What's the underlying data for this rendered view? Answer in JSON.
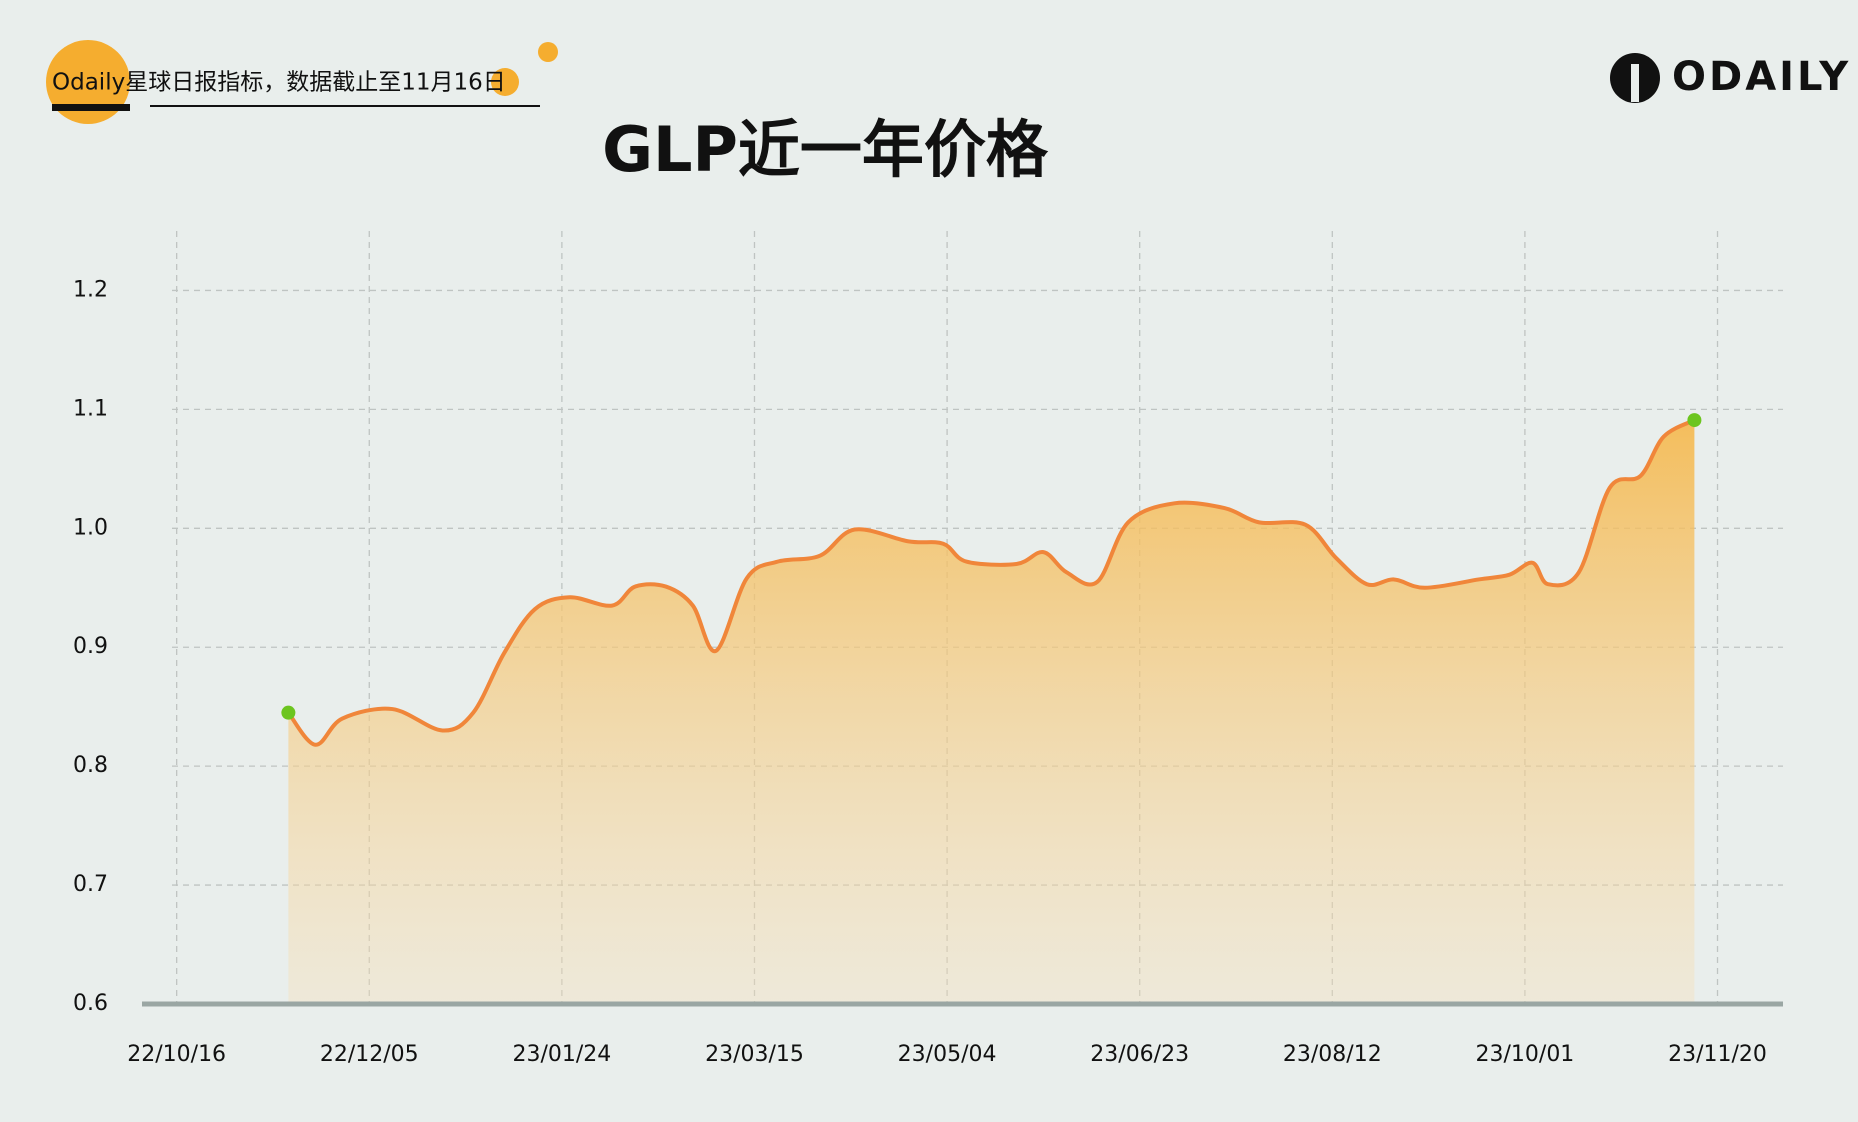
{
  "header": {
    "source": "Odaily星球日报指标，数据截止至11月16日",
    "logo": "ODAILY"
  },
  "chart_data": {
    "type": "line",
    "title": "GLP近一年价格",
    "x": [
      "22/11/14",
      "22/11/21",
      "22/11/28",
      "22/12/11",
      "22/12/24",
      "23/01/01",
      "23/01/09",
      "23/01/17",
      "23/01/26",
      "23/02/06",
      "23/02/12",
      "23/02/20",
      "23/02/27",
      "23/03/05",
      "23/03/13",
      "23/03/21",
      "23/04/01",
      "23/04/10",
      "23/04/24",
      "23/05/03",
      "23/05/09",
      "23/05/22",
      "23/05/29",
      "23/06/04",
      "23/06/12",
      "23/06/20",
      "23/07/02",
      "23/07/15",
      "23/07/24",
      "23/08/05",
      "23/08/13",
      "23/08/21",
      "23/08/28",
      "23/09/05",
      "23/09/19",
      "23/09/27",
      "23/10/03",
      "23/10/07",
      "23/10/15",
      "23/10/23",
      "23/10/31",
      "23/11/06",
      "23/11/14"
    ],
    "series": [
      {
        "color": "#f0863a",
        "values": [
          0.845,
          0.818,
          0.84,
          0.848,
          0.83,
          0.845,
          0.895,
          0.932,
          0.942,
          0.935,
          0.951,
          0.951,
          0.935,
          0.897,
          0.958,
          0.972,
          0.977,
          0.999,
          0.989,
          0.987,
          0.972,
          0.97,
          0.98,
          0.963,
          0.955,
          1.005,
          1.021,
          1.017,
          1.005,
          1.003,
          0.975,
          0.953,
          0.957,
          0.95,
          0.957,
          0.961,
          0.971,
          0.953,
          0.963,
          1.034,
          1.044,
          1.077,
          1.091
        ]
      }
    ],
    "endpoint_color": "#6cc51f",
    "xlim": [
      "22/10/07",
      "23/12/07"
    ],
    "xticks": [
      "22/10/16",
      "22/12/05",
      "23/01/24",
      "23/03/15",
      "23/05/04",
      "23/06/23",
      "23/08/12",
      "23/10/01",
      "23/11/20"
    ],
    "ylim": [
      0.6,
      1.25
    ],
    "yticks": [
      {
        "value": 0.6,
        "label": "0.6"
      },
      {
        "value": 0.7,
        "label": "0.7"
      },
      {
        "value": 0.8,
        "label": "0.8"
      },
      {
        "value": 0.9,
        "label": "0.9"
      },
      {
        "value": 1.0,
        "label": "1.0"
      },
      {
        "value": 1.1,
        "label": "1.1"
      },
      {
        "value": 1.2,
        "label": "1.2"
      }
    ],
    "grid": true
  }
}
